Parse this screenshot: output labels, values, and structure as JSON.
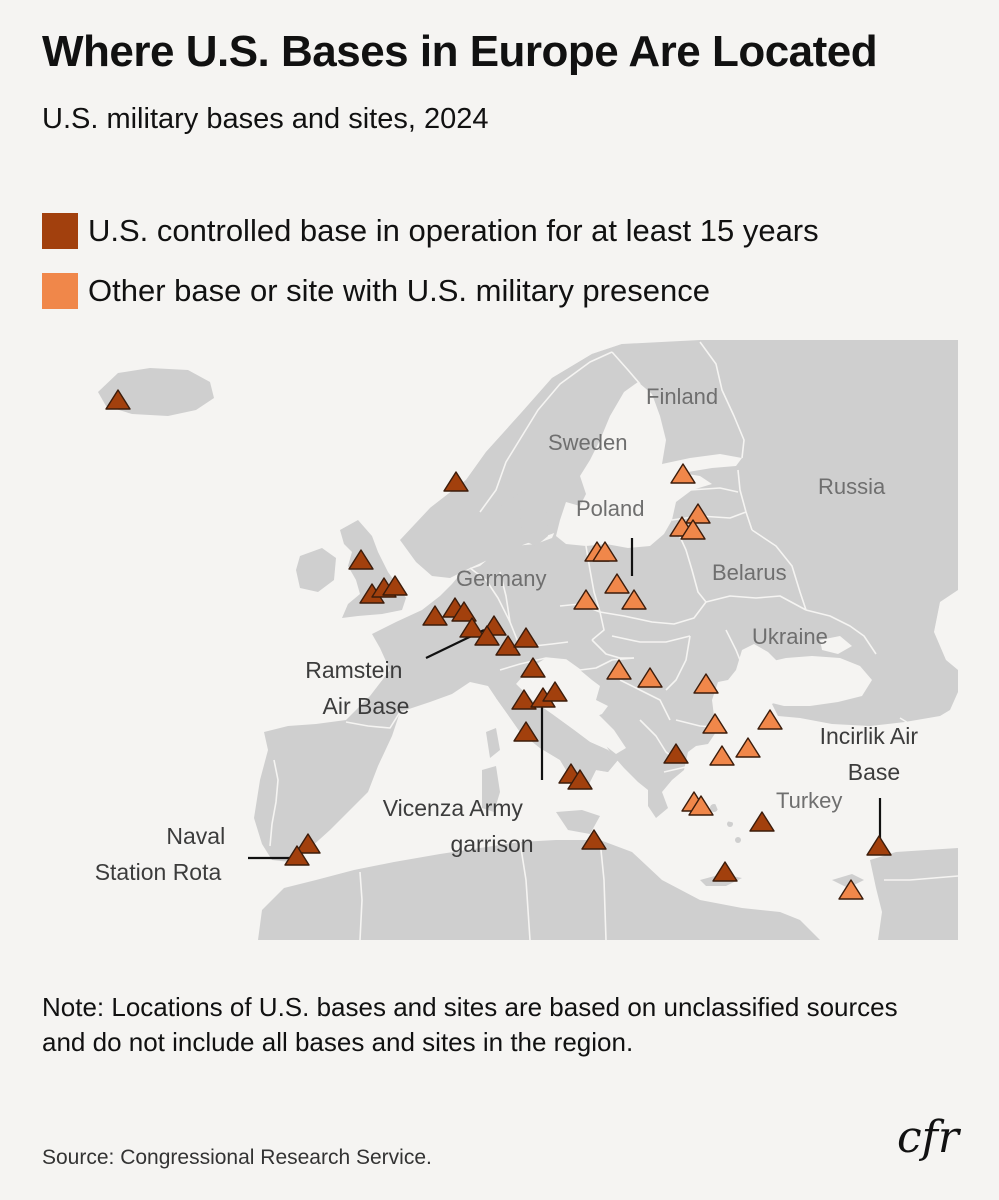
{
  "title": "Where U.S. Bases in Europe Are Located",
  "subtitle": "U.S. military bases and sites, 2024",
  "legend": [
    {
      "label": "U.S. controlled base in operation for at least 15 years",
      "color": "#a2400d"
    },
    {
      "label": "Other base or site with U.S. military presence",
      "color": "#f0874a"
    }
  ],
  "colors": {
    "land": "#cfcfcf",
    "sea": "#f5f4f2",
    "border": "#f5f4f2",
    "country_label": "#6f6f6f",
    "callout_label": "#3c3c3c",
    "marker_outline": "#3b1c0b"
  },
  "map": {
    "country_labels": [
      "Finland",
      "Sweden",
      "Russia",
      "Poland",
      "Germany",
      "Belarus",
      "Ukraine",
      "Turkey"
    ],
    "callouts": [
      {
        "lines": [
          "Ramstein",
          "Air Base"
        ]
      },
      {
        "lines": [
          "Vicenza Army",
          "garrison"
        ]
      },
      {
        "lines": [
          "Naval",
          "Station Rota"
        ]
      },
      {
        "lines": [
          "Incirlik Air",
          "Base"
        ]
      }
    ],
    "counts": {
      "long_standing_bases": 32,
      "other_sites": 28
    }
  },
  "note": "Note: Locations of U.S. bases and sites are based on unclassified sources and do not include all bases and sites in the region.",
  "source": "Source: Congressional Research Service.",
  "logo": "cfr"
}
